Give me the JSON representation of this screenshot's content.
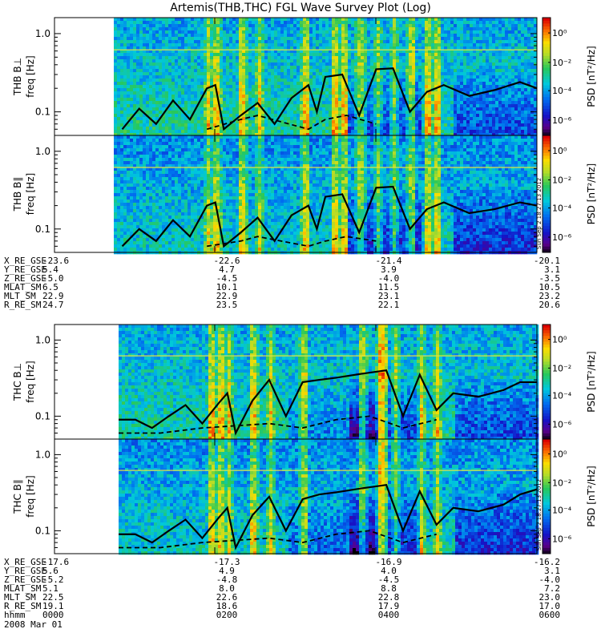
{
  "title": "Artemis(THB,THC) FGL Wave Survey Plot (Log)",
  "colorbar": {
    "label": "PSD [nT²/Hz]",
    "ticks": [
      "10⁰",
      "10⁻²",
      "10⁻⁴",
      "10⁻⁶"
    ]
  },
  "stamp": "Sun Sep 2 18:27:13 2012",
  "chart_data": [
    {
      "type": "heatmap",
      "panel": "THB B⊥",
      "ylabel_probe": "THB B⊥",
      "ylabel": "freq [Hz]",
      "yscale": "log",
      "ylim": [
        0.05,
        1.6
      ],
      "yticks": [
        "1.0",
        "0.1"
      ],
      "solid_line": [
        [
          0.02,
          0.06
        ],
        [
          0.06,
          0.11
        ],
        [
          0.1,
          0.07
        ],
        [
          0.14,
          0.14
        ],
        [
          0.18,
          0.08
        ],
        [
          0.22,
          0.2
        ],
        [
          0.24,
          0.22
        ],
        [
          0.26,
          0.06
        ],
        [
          0.3,
          0.09
        ],
        [
          0.34,
          0.13
        ],
        [
          0.38,
          0.07
        ],
        [
          0.42,
          0.15
        ],
        [
          0.46,
          0.22
        ],
        [
          0.48,
          0.1
        ],
        [
          0.5,
          0.28
        ],
        [
          0.54,
          0.3
        ],
        [
          0.58,
          0.09
        ],
        [
          0.62,
          0.35
        ],
        [
          0.66,
          0.36
        ],
        [
          0.7,
          0.1
        ],
        [
          0.74,
          0.18
        ],
        [
          0.78,
          0.22
        ],
        [
          0.84,
          0.16
        ],
        [
          0.9,
          0.19
        ],
        [
          0.96,
          0.24
        ],
        [
          1.0,
          0.2
        ]
      ],
      "dashed_line": [
        [
          0.22,
          0.06
        ],
        [
          0.3,
          0.08
        ],
        [
          0.34,
          0.09
        ],
        [
          0.46,
          0.06
        ],
        [
          0.5,
          0.08
        ],
        [
          0.55,
          0.09
        ],
        [
          0.62,
          0.07
        ]
      ]
    },
    {
      "type": "heatmap",
      "panel": "THB B∥",
      "ylabel_probe": "THB B∥",
      "ylabel": "freq [Hz]",
      "yscale": "log",
      "ylim": [
        0.05,
        1.6
      ],
      "yticks": [
        "1.0",
        "0.1"
      ],
      "solid_line": [
        [
          0.02,
          0.06
        ],
        [
          0.06,
          0.1
        ],
        [
          0.1,
          0.07
        ],
        [
          0.14,
          0.13
        ],
        [
          0.18,
          0.08
        ],
        [
          0.22,
          0.2
        ],
        [
          0.24,
          0.22
        ],
        [
          0.26,
          0.06
        ],
        [
          0.3,
          0.09
        ],
        [
          0.34,
          0.14
        ],
        [
          0.38,
          0.07
        ],
        [
          0.42,
          0.15
        ],
        [
          0.46,
          0.2
        ],
        [
          0.48,
          0.1
        ],
        [
          0.5,
          0.26
        ],
        [
          0.54,
          0.28
        ],
        [
          0.58,
          0.09
        ],
        [
          0.62,
          0.34
        ],
        [
          0.66,
          0.35
        ],
        [
          0.7,
          0.1
        ],
        [
          0.74,
          0.18
        ],
        [
          0.78,
          0.22
        ],
        [
          0.84,
          0.16
        ],
        [
          0.9,
          0.18
        ],
        [
          0.96,
          0.22
        ],
        [
          1.0,
          0.2
        ]
      ],
      "dashed_line": [
        [
          0.22,
          0.06
        ],
        [
          0.3,
          0.07
        ],
        [
          0.34,
          0.08
        ],
        [
          0.46,
          0.06
        ],
        [
          0.5,
          0.07
        ],
        [
          0.55,
          0.08
        ],
        [
          0.62,
          0.07
        ]
      ]
    },
    {
      "type": "heatmap",
      "panel": "THC B⊥",
      "ylabel_probe": "THC B⊥",
      "ylabel": "freq [Hz]",
      "yscale": "log",
      "ylim": [
        0.05,
        1.6
      ],
      "yticks": [
        "1.0",
        "0.1"
      ],
      "solid_line": [
        [
          0.0,
          0.09
        ],
        [
          0.04,
          0.09
        ],
        [
          0.08,
          0.07
        ],
        [
          0.12,
          0.1
        ],
        [
          0.16,
          0.14
        ],
        [
          0.2,
          0.08
        ],
        [
          0.24,
          0.15
        ],
        [
          0.26,
          0.2
        ],
        [
          0.28,
          0.06
        ],
        [
          0.32,
          0.16
        ],
        [
          0.36,
          0.3
        ],
        [
          0.4,
          0.1
        ],
        [
          0.44,
          0.28
        ],
        [
          0.48,
          0.3
        ],
        [
          0.52,
          0.32
        ],
        [
          0.58,
          0.36
        ],
        [
          0.64,
          0.4
        ],
        [
          0.68,
          0.1
        ],
        [
          0.72,
          0.35
        ],
        [
          0.76,
          0.12
        ],
        [
          0.8,
          0.2
        ],
        [
          0.86,
          0.18
        ],
        [
          0.92,
          0.22
        ],
        [
          0.96,
          0.28
        ],
        [
          1.0,
          0.28
        ]
      ],
      "dashed_line": [
        [
          0.0,
          0.06
        ],
        [
          0.1,
          0.06
        ],
        [
          0.2,
          0.07
        ],
        [
          0.36,
          0.08
        ],
        [
          0.44,
          0.07
        ],
        [
          0.52,
          0.09
        ],
        [
          0.6,
          0.1
        ],
        [
          0.68,
          0.07
        ],
        [
          0.76,
          0.09
        ]
      ]
    },
    {
      "type": "heatmap",
      "panel": "THC B∥",
      "ylabel_probe": "THC B∥",
      "ylabel": "freq [Hz]",
      "yscale": "log",
      "ylim": [
        0.05,
        1.6
      ],
      "yticks": [
        "1.0",
        "0.1"
      ],
      "solid_line": [
        [
          0.0,
          0.09
        ],
        [
          0.04,
          0.09
        ],
        [
          0.08,
          0.07
        ],
        [
          0.12,
          0.1
        ],
        [
          0.16,
          0.14
        ],
        [
          0.2,
          0.08
        ],
        [
          0.24,
          0.15
        ],
        [
          0.26,
          0.2
        ],
        [
          0.28,
          0.06
        ],
        [
          0.32,
          0.16
        ],
        [
          0.36,
          0.28
        ],
        [
          0.4,
          0.1
        ],
        [
          0.44,
          0.26
        ],
        [
          0.48,
          0.3
        ],
        [
          0.52,
          0.32
        ],
        [
          0.58,
          0.36
        ],
        [
          0.64,
          0.4
        ],
        [
          0.68,
          0.1
        ],
        [
          0.72,
          0.33
        ],
        [
          0.76,
          0.12
        ],
        [
          0.8,
          0.2
        ],
        [
          0.86,
          0.18
        ],
        [
          0.92,
          0.22
        ],
        [
          0.96,
          0.3
        ],
        [
          1.0,
          0.35
        ]
      ],
      "dashed_line": [
        [
          0.0,
          0.06
        ],
        [
          0.1,
          0.06
        ],
        [
          0.2,
          0.07
        ],
        [
          0.36,
          0.08
        ],
        [
          0.44,
          0.07
        ],
        [
          0.52,
          0.09
        ],
        [
          0.6,
          0.1
        ],
        [
          0.68,
          0.07
        ],
        [
          0.76,
          0.09
        ]
      ]
    }
  ],
  "ephemeris_thb": {
    "labels": [
      "X_RE_GSE",
      "Y_RE_GSE",
      "Z_RE_GSE",
      "MLAT_SM",
      "MLT_SM",
      "R_RE_SM"
    ],
    "columns": [
      [
        "-23.6",
        "5.4",
        "-5.0",
        "6.5",
        "22.9",
        "24.7"
      ],
      [
        "-22.6",
        "4.7",
        "-4.5",
        "10.1",
        "22.9",
        "23.5"
      ],
      [
        "-21.4",
        "3.9",
        "-4.0",
        "11.5",
        "23.1",
        "22.1"
      ],
      [
        "-20.1",
        "3.1",
        "-3.5",
        "10.5",
        "23.2",
        "20.6"
      ]
    ]
  },
  "ephemeris_thc": {
    "labels": [
      "X_RE_GSE",
      "Y_RE_GSE",
      "Z_RE_GSE",
      "MLAT_SM",
      "MLT_SM",
      "R_RE_SM",
      "hhmm"
    ],
    "columns": [
      [
        "-17.6",
        "5.6",
        "-5.2",
        "5.1",
        "22.5",
        "19.1",
        "0000"
      ],
      [
        "-17.3",
        "4.9",
        "-4.8",
        "8.0",
        "22.6",
        "18.6",
        "0200"
      ],
      [
        "-16.9",
        "4.0",
        "-4.5",
        "8.8",
        "22.8",
        "17.9",
        "0400"
      ],
      [
        "-16.2",
        "3.1",
        "-4.0",
        "7.2",
        "23.0",
        "17.0",
        "0600"
      ]
    ]
  },
  "date": "2008 Mar 01"
}
